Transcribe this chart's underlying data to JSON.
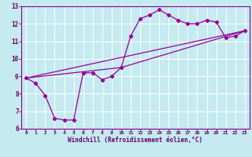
{
  "xlabel": "Windchill (Refroidissement éolien,°C)",
  "bg_color": "#c5eaf0",
  "grid_color": "#ffffff",
  "line_color": "#990099",
  "xlim": [
    -0.5,
    23.5
  ],
  "ylim": [
    6,
    13
  ],
  "xticks": [
    0,
    1,
    2,
    3,
    4,
    5,
    6,
    7,
    8,
    9,
    10,
    11,
    12,
    13,
    14,
    15,
    16,
    17,
    18,
    19,
    20,
    21,
    22,
    23
  ],
  "yticks": [
    6,
    7,
    8,
    9,
    10,
    11,
    12,
    13
  ],
  "series1_x": [
    0,
    1,
    2,
    3,
    4,
    5,
    6,
    7,
    8,
    9,
    10,
    11,
    12,
    13,
    14,
    15,
    16,
    17,
    18,
    19,
    20,
    21,
    22,
    23
  ],
  "series1_y": [
    8.9,
    8.6,
    7.9,
    6.6,
    6.5,
    6.5,
    9.2,
    9.2,
    8.8,
    9.0,
    9.5,
    11.3,
    12.3,
    12.5,
    12.8,
    12.5,
    12.2,
    12.0,
    12.0,
    12.2,
    12.1,
    11.2,
    11.3,
    11.6
  ],
  "series2_x": [
    0,
    23
  ],
  "series2_y": [
    8.9,
    11.6
  ],
  "series3_x": [
    0,
    10,
    23
  ],
  "series3_y": [
    8.9,
    9.5,
    11.6
  ]
}
